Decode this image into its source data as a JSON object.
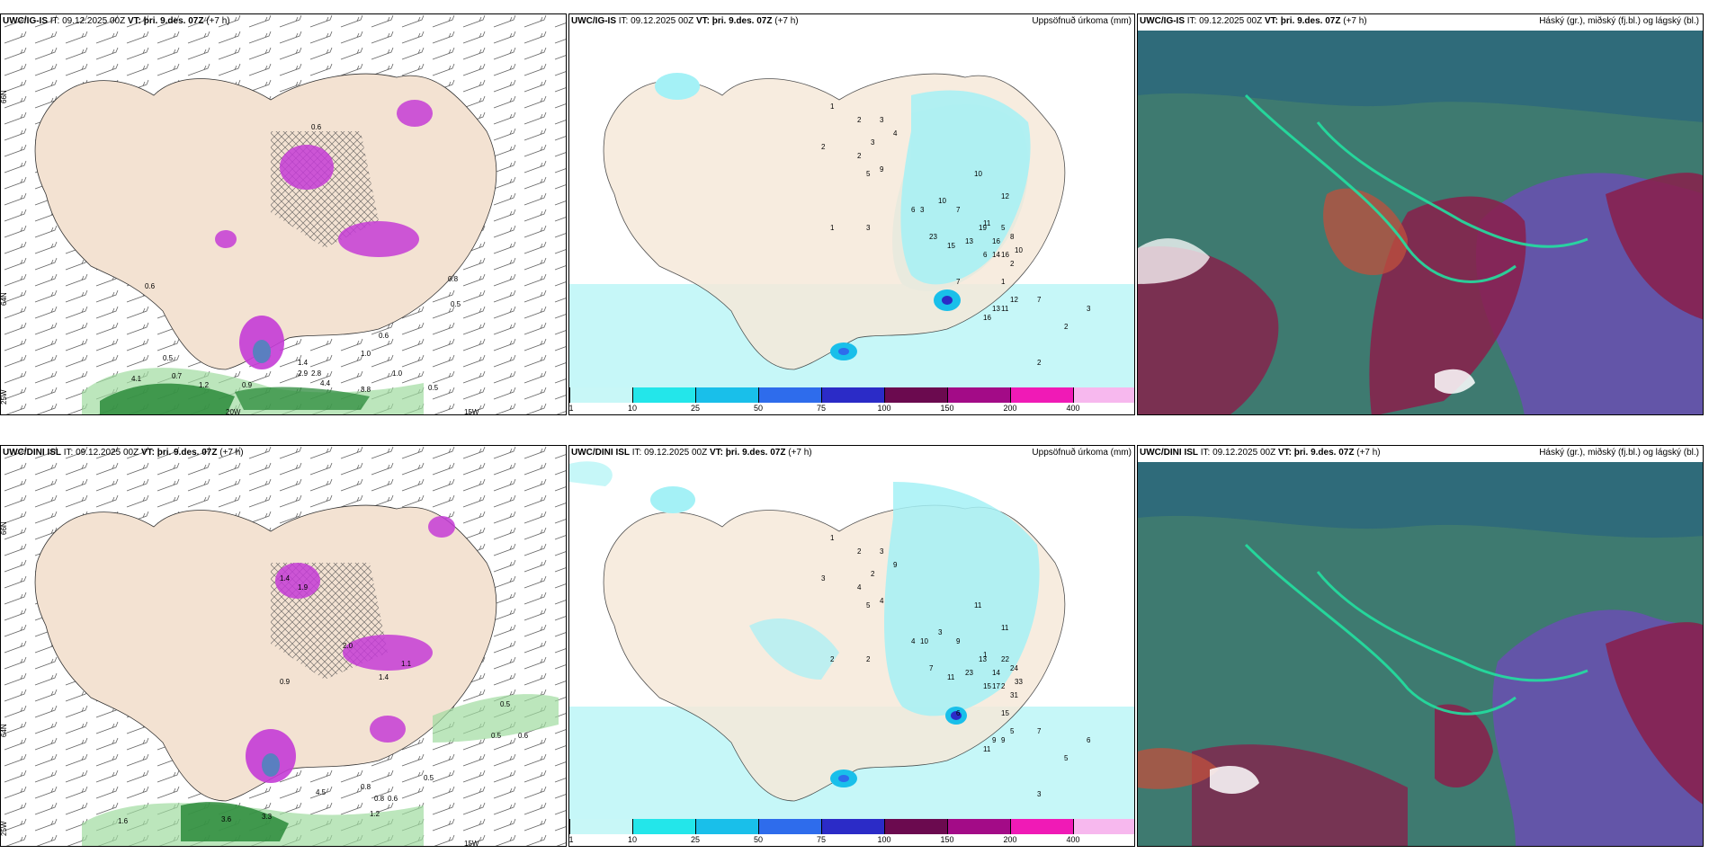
{
  "rows": [
    {
      "model": "UWC/IG-IS",
      "it_label": "IT:",
      "it_value": "09.12.2025 00Z",
      "vt_label": "VT:",
      "vt_value": "þri. 9.des. 07Z",
      "lead": "(+7 h)",
      "precip_title": "Uppsöfnuð úrkoma (mm)",
      "cloud_title": "Háský (gr.), miðský (fj.bl.) og lágský (bl.)",
      "precip_values": [
        "1",
        "2",
        "2",
        "2",
        "3",
        "3",
        "4",
        "5",
        "9",
        "1",
        "3",
        "6",
        "10",
        "7",
        "10",
        "11",
        "12",
        "19",
        "16",
        "14",
        "13",
        "6",
        "5",
        "8",
        "10",
        "2",
        "1",
        "3",
        "23",
        "15",
        "16",
        "7",
        "12",
        "11",
        "16",
        "13",
        "7",
        "2",
        "2",
        "3"
      ],
      "wind_values": [
        "0.6",
        "0.6",
        "0.5",
        "0.5",
        "0.7",
        "1.4",
        "2.9",
        "2.8",
        "4.4",
        "1.0",
        "0.5",
        "0.6",
        "0.8",
        "1.2",
        "0.9",
        "4.1",
        "3.8",
        "1.0"
      ]
    },
    {
      "model": "UWC/DINI ISL",
      "it_label": "IT:",
      "it_value": "09.12.2025 00Z",
      "vt_label": "VT:",
      "vt_value": "þri. 9.des. 07Z",
      "lead": "(+7 h)",
      "precip_title": "Uppsöfnuð úrkoma (mm)",
      "cloud_title": "Háský (gr.), miðský (fj.bl.) og lágský (bl.)",
      "precip_values": [
        "1",
        "3",
        "2",
        "4",
        "2",
        "3",
        "9",
        "5",
        "4",
        "2",
        "2",
        "4",
        "3",
        "9",
        "11",
        "1",
        "11",
        "13",
        "14",
        "17",
        "23",
        "15",
        "22",
        "24",
        "33",
        "31",
        "15",
        "10",
        "7",
        "11",
        "2",
        "6",
        "5",
        "9",
        "11",
        "9",
        "7",
        "5",
        "3",
        "6"
      ],
      "wind_values": [
        "0.5",
        "0.6",
        "0.5",
        "1.9",
        "1.4",
        "1.1",
        "2.0",
        "1.4",
        "0.9",
        "0.8",
        "0.6",
        "3.6",
        "3.3",
        "1.6",
        "4.5",
        "1.2",
        "0.5",
        "0.8"
      ]
    }
  ],
  "axis_labels": {
    "lat66": "66N",
    "lat64": "64N",
    "lon25": "25W",
    "lon20": "20W",
    "lon15": "15W"
  },
  "colorbar": {
    "ticks": [
      "1",
      "10",
      "25",
      "50",
      "75",
      "100",
      "150",
      "200",
      "400"
    ],
    "colors": [
      "#c8f7f7",
      "#23e6ea",
      "#19bfea",
      "#2e6cec",
      "#2b2bc7",
      "#6b0a4f",
      "#a30b87",
      "#f01ab6",
      "#f7b8ee"
    ]
  },
  "colors": {
    "land": "#f6e9da",
    "sea_precip": "#c6f7f8",
    "precip_light": "#a4f1f6",
    "cloud_base": "#3e7a70",
    "purple_precip": "#c43cd6",
    "green_precip": "#2a8a3a"
  }
}
